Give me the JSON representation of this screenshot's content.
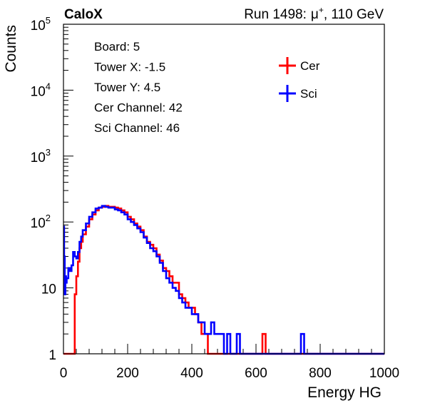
{
  "header": {
    "experiment": "CaloX",
    "run_label": "Run 1498:",
    "beam_particle": "μ",
    "beam_charge": "+",
    "beam_energy": ", 110 GeV"
  },
  "info_box": [
    {
      "label": "Board: 5"
    },
    {
      "label": "Tower X: -1.5"
    },
    {
      "label": "Tower Y: 4.5"
    },
    {
      "label": "Cer Channel: 42"
    },
    {
      "label": "Sci Channel: 46"
    }
  ],
  "chart_data": {
    "type": "line",
    "title": "",
    "xlabel": "Energy HG",
    "ylabel": "Counts",
    "xlim": [
      0,
      1000
    ],
    "ylim": [
      1,
      100000
    ],
    "y_scale": "log",
    "grid": false,
    "legend_position": "top-right",
    "x_ticks": [
      "0",
      "200",
      "400",
      "600",
      "800",
      "1000"
    ],
    "y_ticks": [
      {
        "value": 1,
        "label": "1"
      },
      {
        "value": 10,
        "label": "10"
      },
      {
        "value": 100,
        "label": "10",
        "sup": "2"
      },
      {
        "value": 1000,
        "label": "10",
        "sup": "3"
      },
      {
        "value": 10000,
        "label": "10",
        "sup": "4"
      },
      {
        "value": 100000,
        "label": "10",
        "sup": "5"
      }
    ],
    "series": [
      {
        "name": "Cer",
        "color": "#ff0000",
        "x": [
          0,
          2,
          4,
          6,
          8,
          10,
          15,
          20,
          25,
          30,
          35,
          40,
          45,
          50,
          55,
          60,
          70,
          80,
          90,
          100,
          110,
          120,
          130,
          140,
          150,
          160,
          170,
          180,
          190,
          200,
          210,
          220,
          230,
          240,
          250,
          260,
          270,
          280,
          290,
          300,
          310,
          320,
          330,
          340,
          350,
          360,
          370,
          380,
          390,
          400,
          410,
          420,
          430,
          440,
          450,
          460,
          470,
          480,
          490,
          500,
          510,
          520,
          530,
          540,
          550,
          560,
          570,
          580,
          590,
          600,
          610,
          620,
          630,
          640,
          650,
          660,
          670,
          680,
          690,
          700,
          710,
          720,
          730,
          740,
          750,
          760,
          780,
          800,
          850,
          900,
          950,
          1000
        ],
        "y": [
          1,
          1,
          1,
          1,
          1,
          1,
          1,
          1,
          1,
          1,
          8,
          15,
          25,
          40,
          50,
          65,
          85,
          110,
          130,
          150,
          165,
          170,
          175,
          170,
          170,
          165,
          160,
          150,
          140,
          120,
          110,
          95,
          85,
          75,
          60,
          50,
          45,
          40,
          32,
          26,
          20,
          18,
          15,
          12,
          12,
          8,
          7,
          6,
          5,
          5,
          4,
          3,
          2,
          2,
          1,
          1,
          1,
          1,
          1,
          1,
          1,
          1,
          1,
          1,
          1,
          1,
          1,
          1,
          1,
          1,
          1,
          2,
          1,
          1,
          1,
          1,
          1,
          1,
          1,
          1,
          1,
          1,
          1,
          1,
          1,
          1,
          1,
          1,
          1,
          1,
          1,
          1
        ]
      },
      {
        "name": "Sci",
        "color": "#0000ff",
        "x": [
          0,
          2,
          4,
          6,
          8,
          10,
          15,
          20,
          25,
          30,
          35,
          40,
          45,
          50,
          55,
          60,
          70,
          80,
          90,
          100,
          110,
          120,
          130,
          140,
          150,
          160,
          170,
          180,
          190,
          200,
          210,
          220,
          230,
          240,
          250,
          260,
          270,
          280,
          290,
          300,
          310,
          320,
          330,
          340,
          350,
          360,
          370,
          380,
          390,
          400,
          410,
          420,
          430,
          440,
          450,
          460,
          470,
          480,
          490,
          500,
          510,
          520,
          530,
          540,
          550,
          560,
          570,
          580,
          590,
          600,
          610,
          620,
          630,
          640,
          650,
          660,
          670,
          680,
          690,
          700,
          710,
          720,
          730,
          740,
          750,
          760,
          780,
          800,
          850,
          900,
          950,
          1000
        ],
        "y": [
          85,
          30,
          8,
          15,
          12,
          14,
          20,
          18,
          22,
          35,
          30,
          28,
          35,
          50,
          60,
          75,
          95,
          120,
          140,
          160,
          165,
          175,
          170,
          165,
          165,
          155,
          150,
          140,
          130,
          110,
          100,
          90,
          80,
          70,
          58,
          48,
          40,
          36,
          30,
          24,
          18,
          14,
          12,
          10,
          9,
          7,
          6,
          5,
          5,
          4,
          4,
          3,
          3,
          2,
          2,
          3,
          2,
          2,
          2,
          1,
          2,
          1,
          1,
          2,
          1,
          1,
          1,
          1,
          1,
          1,
          1,
          1,
          1,
          1,
          1,
          1,
          1,
          1,
          1,
          1,
          1,
          1,
          1,
          2,
          1,
          1,
          1,
          1,
          1,
          1,
          1,
          1
        ]
      }
    ]
  }
}
